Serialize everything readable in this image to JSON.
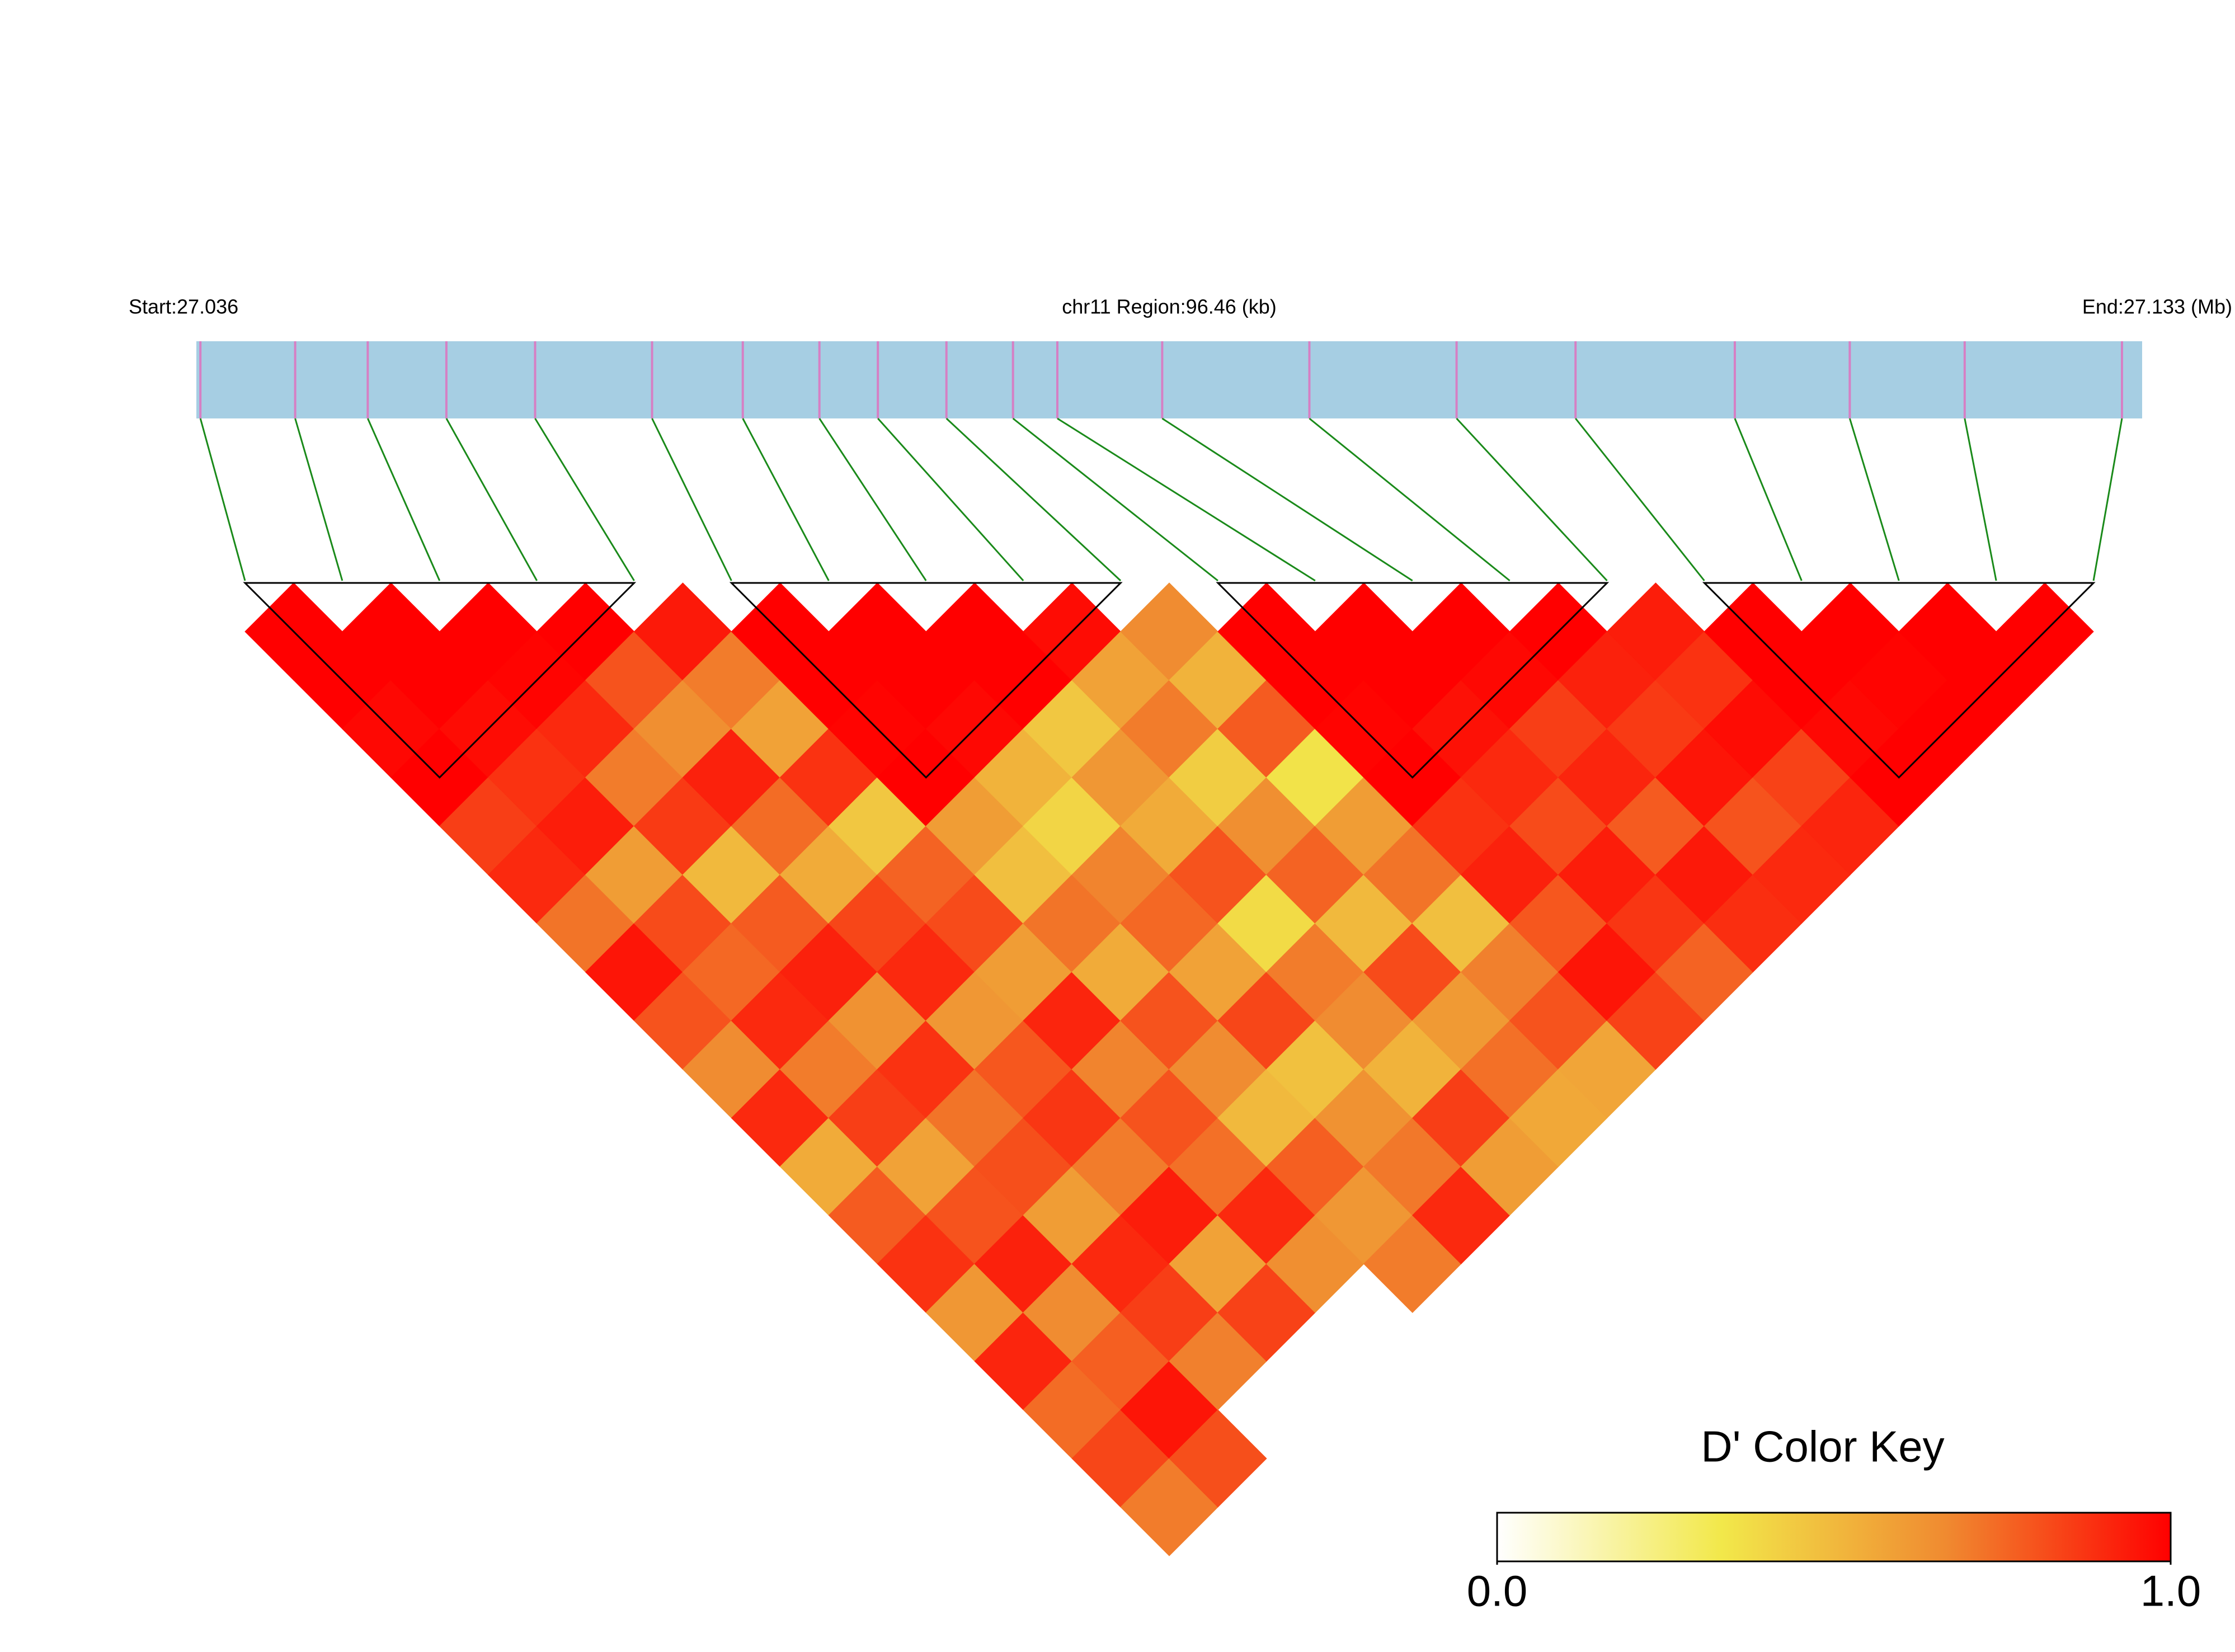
{
  "chart_data": {
    "type": "ld-heatmap",
    "start_label": "Start:27.036",
    "region_label": "chr11 Region:96.46 (kb)",
    "end_label": "End:27.133 (Mb)",
    "key_title": "D' Color Key",
    "xlim": [
      27.0363,
      27.1328
    ],
    "positions": [
      27.0365,
      27.0412,
      27.0448,
      27.0487,
      27.0531,
      27.0589,
      27.0634,
      27.0672,
      27.0701,
      27.0735,
      27.0768,
      27.079,
      27.0842,
      27.0915,
      27.0988,
      27.1047,
      27.1126,
      27.1183,
      27.124,
      27.1318
    ],
    "dprime": [
      [
        1,
        1,
        0.98,
        1,
        0.85,
        0.9,
        0.72,
        0.95,
        0.8,
        0.66,
        0.9,
        0.55,
        0.78,
        0.88,
        0.62,
        0.91,
        0.74,
        0.83,
        0.7
      ],
      [
        1,
        1,
        0.97,
        0.88,
        0.93,
        0.6,
        0.82,
        0.75,
        0.9,
        0.7,
        0.85,
        0.58,
        0.8,
        0.92,
        0.66,
        0.77,
        0.95,
        0.81
      ],
      [
        1,
        0.99,
        0.9,
        0.7,
        0.86,
        0.5,
        0.78,
        0.92,
        0.64,
        0.88,
        0.72,
        0.81,
        0.6,
        0.9,
        0.85,
        0.69
      ],
      [
        1,
        0.8,
        0.65,
        0.92,
        0.74,
        0.55,
        0.83,
        0.9,
        0.62,
        0.79,
        0.87,
        0.7,
        0.93,
        0.58,
        0.84
      ],
      [
        0.94,
        0.7,
        0.58,
        0.88,
        0.45,
        0.76,
        0.82,
        0.6,
        0.91,
        0.68,
        0.8,
        0.73,
        0.9,
        0.65
      ],
      [
        1,
        1,
        0.99,
        1,
        0.6,
        0.48,
        0.72,
        0.55,
        0.8,
        0.66,
        0.5,
        0.77,
        0.62,
        0.7
      ],
      [
        1,
        1,
        0.98,
        0.52,
        0.4,
        0.68,
        0.75,
        0.58,
        0.83,
        0.47,
        0.64,
        0.71,
        0.9
      ],
      [
        1,
        1,
        0.45,
        0.62,
        0.55,
        0.8,
        0.38,
        0.7,
        0.66,
        0.52,
        0.85,
        0.6
      ],
      [
        0.97,
        0.58,
        0.7,
        0.43,
        0.65,
        0.76,
        0.5,
        0.82,
        0.61,
        0.73,
        0.56
      ],
      [
        0.66,
        0.52,
        0.78,
        0.35,
        0.6,
        0.72,
        0.48,
        0.69,
        0.8,
        0.57
      ],
      [
        1,
        1,
        0.99,
        1,
        0.88,
        0.92,
        0.79,
        0.95,
        0.84
      ],
      [
        1,
        1,
        0.96,
        0.9,
        0.82,
        0.93,
        0.87,
        0.76
      ],
      [
        1,
        0.98,
        0.85,
        0.91,
        0.78,
        0.94,
        0.89
      ],
      [
        1,
        0.92,
        0.86,
        0.95,
        0.8,
        0.9
      ],
      [
        0.93,
        0.88,
        0.97,
        0.84,
        0.91
      ],
      [
        1,
        1,
        0.98,
        1
      ],
      [
        1,
        0.99,
        1
      ],
      [
        1,
        1
      ],
      [
        1
      ]
    ],
    "blocks": [
      [
        0,
        4
      ],
      [
        5,
        9
      ],
      [
        10,
        14
      ],
      [
        15,
        19
      ]
    ],
    "colorscale": [
      "#ffffff",
      "#f2e84a",
      "#f08a30",
      "#ff0000"
    ],
    "key_lim": [
      0,
      1
    ],
    "key_ticks": [
      {
        "value": 0,
        "label": "0.0"
      },
      {
        "value": 1,
        "label": "1.0"
      }
    ],
    "bar_color": "#a6cee3",
    "snp_color": "#d67fc4",
    "link_color": "#1a8a1a",
    "block_color": "#000000"
  }
}
